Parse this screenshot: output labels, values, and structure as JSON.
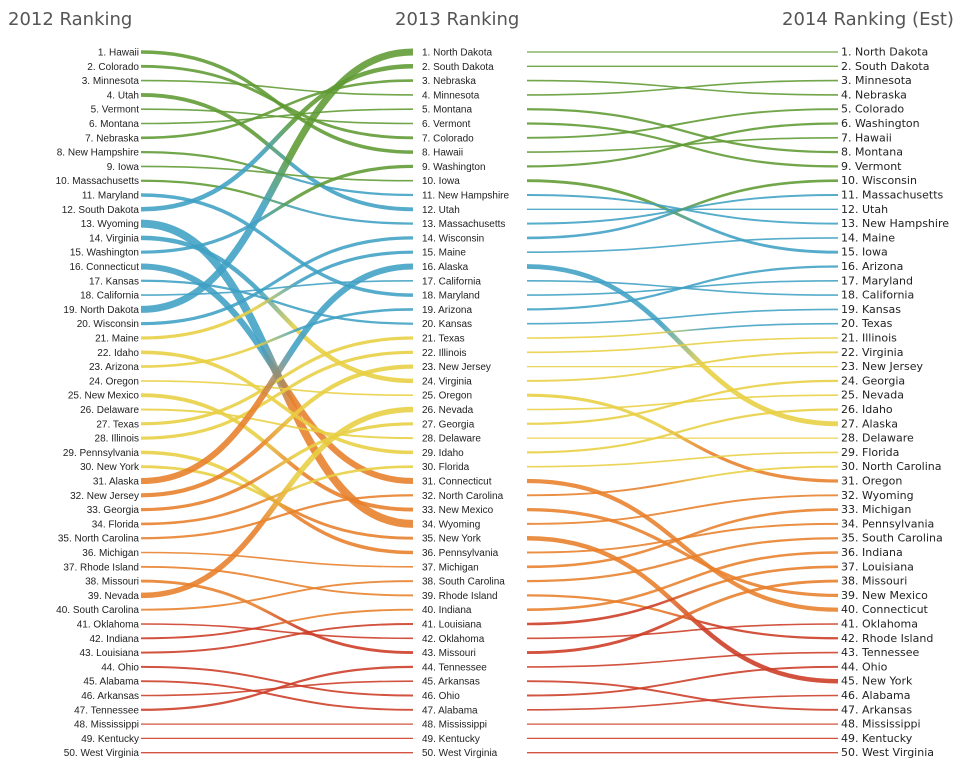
{
  "chart_data": {
    "type": "slopegraph",
    "columns": [
      "2012 Ranking",
      "2013 Ranking",
      "2014 Ranking (Est)"
    ],
    "rankings_2012": [
      "Hawaii",
      "Colorado",
      "Minnesota",
      "Utah",
      "Vermont",
      "Montana",
      "Nebraska",
      "New Hampshire",
      "Iowa",
      "Massachusetts",
      "Maryland",
      "South Dakota",
      "Wyoming",
      "Virginia",
      "Washington",
      "Connecticut",
      "Kansas",
      "California",
      "North Dakota",
      "Wisconsin",
      "Maine",
      "Idaho",
      "Arizona",
      "Oregon",
      "New Mexico",
      "Delaware",
      "Texas",
      "Illinois",
      "Pennsylvania",
      "New York",
      "Alaska",
      "New Jersey",
      "Georgia",
      "Florida",
      "North Carolina",
      "Michigan",
      "Rhode Island",
      "Missouri",
      "Nevada",
      "South Carolina",
      "Oklahoma",
      "Indiana",
      "Louisiana",
      "Ohio",
      "Alabama",
      "Arkansas",
      "Tennessee",
      "Mississippi",
      "Kentucky",
      "West Virginia"
    ],
    "rankings_2013": [
      "North Dakota",
      "South Dakota",
      "Nebraska",
      "Minnesota",
      "Montana",
      "Vermont",
      "Colorado",
      "Hawaii",
      "Washington",
      "Iowa",
      "New Hampshire",
      "Utah",
      "Massachusetts",
      "Wisconsin",
      "Maine",
      "Alaska",
      "California",
      "Maryland",
      "Arizona",
      "Kansas",
      "Texas",
      "Illinois",
      "New Jersey",
      "Virginia",
      "Oregon",
      "Nevada",
      "Georgia",
      "Delaware",
      "Idaho",
      "Florida",
      "Connecticut",
      "North Carolina",
      "New Mexico",
      "Wyoming",
      "New York",
      "Pennsylvania",
      "Michigan",
      "South Carolina",
      "Rhode Island",
      "Indiana",
      "Louisiana",
      "Oklahoma",
      "Missouri",
      "Tennessee",
      "Arkansas",
      "Ohio",
      "Alabama",
      "Mississippi",
      "Kentucky",
      "West Virginia"
    ],
    "rankings_2014": [
      "North Dakota",
      "South Dakota",
      "Minnesota",
      "Nebraska",
      "Colorado",
      "Washington",
      "Hawaii",
      "Montana",
      "Vermont",
      "Wisconsin",
      "Massachusetts",
      "Utah",
      "New Hampshire",
      "Maine",
      "Iowa",
      "Arizona",
      "Maryland",
      "California",
      "Kansas",
      "Texas",
      "Illinois",
      "Virginia",
      "New Jersey",
      "Georgia",
      "Nevada",
      "Idaho",
      "Alaska",
      "Delaware",
      "Florida",
      "North Carolina",
      "Oregon",
      "Wyoming",
      "Michigan",
      "Pennsylvania",
      "South Carolina",
      "Indiana",
      "Louisiana",
      "Missouri",
      "New Mexico",
      "Connecticut",
      "Oklahoma",
      "Rhode Island",
      "Tennessee",
      "Ohio",
      "New York",
      "Alabama",
      "Arkansas",
      "Mississippi",
      "Kentucky",
      "West Virginia"
    ],
    "band_colors": [
      "#5e9a32",
      "#3fa0c4",
      "#e8cf42",
      "#e77f2a",
      "#cc3b24"
    ]
  }
}
